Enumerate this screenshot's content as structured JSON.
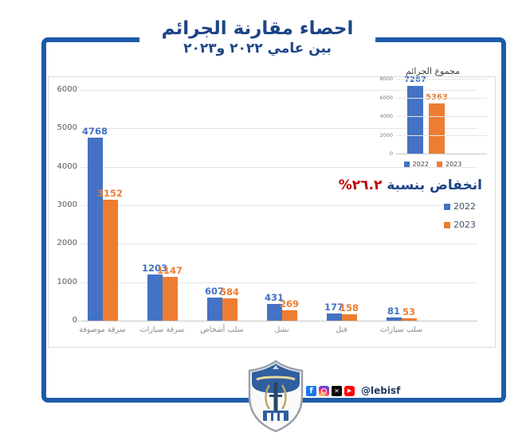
{
  "header": {
    "title_line1": "احصاء مقارنة الجرائم",
    "title_line2": "بين عامي ٢٠٢٢ و٢٠٢٣"
  },
  "chart_data": [
    {
      "type": "bar",
      "title": "",
      "categories": [
        "سرقة موصوفة",
        "سرقة سيارات",
        "سلب أشخاص",
        "نشل",
        "قتل",
        "سلب سيارات"
      ],
      "series": [
        {
          "name": "2022",
          "color": "#4472C4",
          "values": [
            4768,
            1203,
            607,
            431,
            177,
            81
          ]
        },
        {
          "name": "2023",
          "color": "#ED7D31",
          "values": [
            3152,
            1147,
            584,
            269,
            158,
            53
          ]
        }
      ],
      "xlabel": "",
      "ylabel": "",
      "ylim": [
        0,
        6000
      ],
      "yticks": [
        0,
        1000,
        2000,
        3000,
        4000,
        5000,
        6000
      ],
      "grid": true,
      "legend_position": "right"
    },
    {
      "type": "bar",
      "title": "مجموع الجرائم",
      "categories": [
        ""
      ],
      "series": [
        {
          "name": "2022",
          "color": "#4472C4",
          "values": [
            7267
          ]
        },
        {
          "name": "2023",
          "color": "#ED7D31",
          "values": [
            5363
          ]
        }
      ],
      "xlabel": "",
      "ylabel": "",
      "ylim": [
        0,
        8000
      ],
      "yticks": [
        0,
        2000,
        4000,
        6000,
        8000
      ],
      "grid": true,
      "legend_position": "bottom"
    }
  ],
  "annotation": {
    "decrease_label": "انخفاض بنسبة ",
    "decrease_value": "٢٦.٢%"
  },
  "legend": {
    "items": [
      {
        "label": "2022",
        "color": "#4472C4"
      },
      {
        "label": "2023",
        "color": "#ED7D31"
      }
    ]
  },
  "footer": {
    "handle": "@lebisf",
    "social_icons": [
      {
        "name": "facebook",
        "glyph": "f",
        "color": "#1877F2"
      },
      {
        "name": "instagram",
        "glyph": "",
        "color": "#D6249F"
      },
      {
        "name": "x",
        "glyph": "✕",
        "color": "#000000"
      },
      {
        "name": "youtube",
        "glyph": "▶",
        "color": "#FF0000"
      }
    ]
  },
  "colors": {
    "frame": "#1E5BA7",
    "title": "#1C4587",
    "decrease_value": "#C00000",
    "bar_2022": "#4472C4",
    "bar_2023": "#ED7D31",
    "gridline": "#E4E4E4",
    "axis_text": "#595959"
  }
}
